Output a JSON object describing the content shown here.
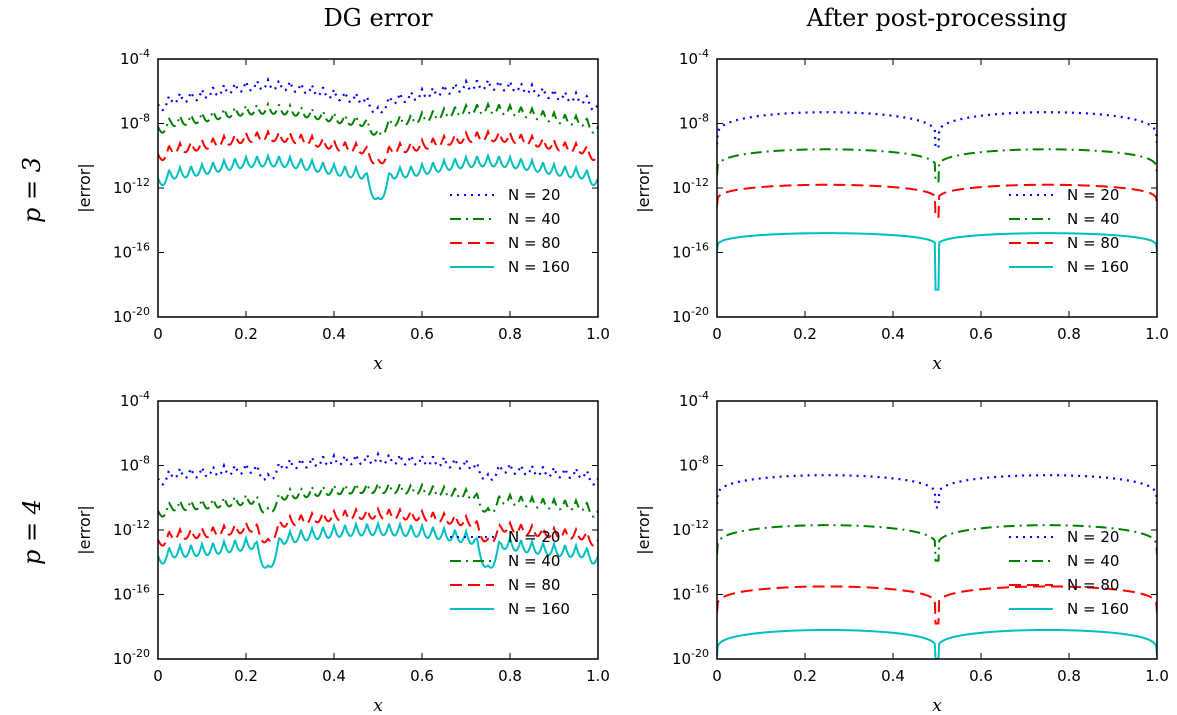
{
  "figure": {
    "column_titles": [
      "DG error",
      "After post-processing"
    ],
    "row_labels": [
      "p = 3",
      "p = 4"
    ]
  },
  "chart_data": [
    {
      "type": "line",
      "title": "DG error",
      "row_label": "p = 3",
      "xlabel": "x",
      "ylabel": "|error|",
      "yscale": "log",
      "xlim": [
        0,
        1
      ],
      "ylim": [
        1e-20,
        0.0001
      ],
      "xticks": [
        "0",
        "0.2",
        "0.4",
        "0.6",
        "0.8",
        "1.0"
      ],
      "yticks": [
        {
          "base": "10",
          "exp": "-20"
        },
        {
          "base": "10",
          "exp": "-16"
        },
        {
          "base": "10",
          "exp": "-12"
        },
        {
          "base": "10",
          "exp": "-8"
        },
        {
          "base": "10",
          "exp": "-4"
        }
      ],
      "legend_position": "lower-right",
      "series": [
        {
          "name": "N = 20",
          "color": "#0000ff",
          "style": "dotted",
          "level": [
            -6.2,
            -5.3
          ],
          "oscillation": 1.0,
          "kinks": [
            0.5
          ],
          "kink_depth": 0.8
        },
        {
          "name": "N = 40",
          "color": "#008000",
          "style": "dashdot",
          "level": [
            -7.6,
            -6.8
          ],
          "oscillation": 1.0,
          "kinks": [
            0.5
          ],
          "kink_depth": 0.8
        },
        {
          "name": "N = 80",
          "color": "#ff0000",
          "style": "dashed",
          "level": [
            -9.3,
            -8.5
          ],
          "oscillation": 1.0,
          "kinks": [
            0.5
          ],
          "kink_depth": 0.9
        },
        {
          "name": "N = 160",
          "color": "#00bfbf",
          "style": "solid",
          "level": [
            -10.8,
            -10.0
          ],
          "oscillation": 1.1,
          "kinks": [
            0.5
          ],
          "kink_depth": 1.8
        }
      ]
    },
    {
      "type": "line",
      "title": "After post-processing",
      "row_label": "p = 3",
      "xlabel": "x",
      "ylabel": "|error|",
      "yscale": "log",
      "xlim": [
        0,
        1
      ],
      "ylim": [
        1e-20,
        0.0001
      ],
      "xticks": [
        "0",
        "0.2",
        "0.4",
        "0.6",
        "0.8",
        "1.0"
      ],
      "yticks": [
        {
          "base": "10",
          "exp": "-20"
        },
        {
          "base": "10",
          "exp": "-16"
        },
        {
          "base": "10",
          "exp": "-12"
        },
        {
          "base": "10",
          "exp": "-8"
        },
        {
          "base": "10",
          "exp": "-4"
        }
      ],
      "legend_position": "lower-right",
      "series": [
        {
          "name": "N = 20",
          "color": "#0000ff",
          "style": "dotted",
          "peak": -7.3,
          "edge": -9.3,
          "dip": -9.5
        },
        {
          "name": "N = 40",
          "color": "#008000",
          "style": "dashdot",
          "peak": -9.6,
          "edge": -11.2,
          "dip": -11.6
        },
        {
          "name": "N = 80",
          "color": "#ff0000",
          "style": "dashed",
          "peak": -11.8,
          "edge": -13.1,
          "dip": -13.8
        },
        {
          "name": "N = 160",
          "color": "#00bfbf",
          "style": "solid",
          "peak": -14.8,
          "edge": -15.9,
          "dip": -18.3
        }
      ]
    },
    {
      "type": "line",
      "title": "DG error",
      "row_label": "p = 4",
      "xlabel": "x",
      "ylabel": "|error|",
      "yscale": "log",
      "xlim": [
        0,
        1
      ],
      "ylim": [
        1e-20,
        0.0001
      ],
      "xticks": [
        "0",
        "0.2",
        "0.4",
        "0.6",
        "0.8",
        "1.0"
      ],
      "yticks": [
        {
          "base": "10",
          "exp": "-20"
        },
        {
          "base": "10",
          "exp": "-16"
        },
        {
          "base": "10",
          "exp": "-12"
        },
        {
          "base": "10",
          "exp": "-8"
        },
        {
          "base": "10",
          "exp": "-4"
        }
      ],
      "legend_position": "lower-right",
      "series": [
        {
          "name": "N = 20",
          "color": "#0000ff",
          "style": "dotted",
          "level": [
            -8.2,
            -7.3
          ],
          "oscillation": 1.0,
          "kinks": [
            0.25,
            0.75
          ],
          "kink_depth": 0.8
        },
        {
          "name": "N = 40",
          "color": "#008000",
          "style": "dashdot",
          "level": [
            -10.2,
            -9.1
          ],
          "oscillation": 1.0,
          "kinks": [
            0.25,
            0.75
          ],
          "kink_depth": 1.0
        },
        {
          "name": "N = 80",
          "color": "#ff0000",
          "style": "dashed",
          "level": [
            -12.0,
            -10.7
          ],
          "oscillation": 1.0,
          "kinks": [
            0.25,
            0.75
          ],
          "kink_depth": 1.2
        },
        {
          "name": "N = 160",
          "color": "#00bfbf",
          "style": "solid",
          "level": [
            -13.0,
            -11.6
          ],
          "oscillation": 1.2,
          "kinks": [
            0.25,
            0.75
          ],
          "kink_depth": 1.9
        }
      ]
    },
    {
      "type": "line",
      "title": "After post-processing",
      "row_label": "p = 4",
      "xlabel": "x",
      "ylabel": "|error|",
      "yscale": "log",
      "xlim": [
        0,
        1
      ],
      "ylim": [
        1e-20,
        0.0001
      ],
      "xticks": [
        "0",
        "0.2",
        "0.4",
        "0.6",
        "0.8",
        "1.0"
      ],
      "yticks": [
        {
          "base": "10",
          "exp": "-20"
        },
        {
          "base": "10",
          "exp": "-16"
        },
        {
          "base": "10",
          "exp": "-12"
        },
        {
          "base": "10",
          "exp": "-8"
        },
        {
          "base": "10",
          "exp": "-4"
        }
      ],
      "legend_position": "lower-right",
      "series": [
        {
          "name": "N = 20",
          "color": "#0000ff",
          "style": "dotted",
          "peak": -8.6,
          "edge": -10.4,
          "dip": -10.6
        },
        {
          "name": "N = 40",
          "color": "#008000",
          "style": "dashdot",
          "peak": -11.7,
          "edge": -13.5,
          "dip": -13.9
        },
        {
          "name": "N = 80",
          "color": "#ff0000",
          "style": "dashed",
          "peak": -15.5,
          "edge": -17.1,
          "dip": -17.8
        },
        {
          "name": "N = 160",
          "color": "#00bfbf",
          "style": "solid",
          "peak": -18.2,
          "edge": -19.8,
          "dip": -20.0
        }
      ]
    }
  ]
}
